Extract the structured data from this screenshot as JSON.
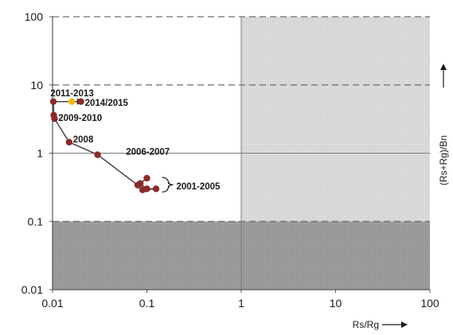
{
  "chart_data": {
    "type": "scatter",
    "x_scale": "log",
    "y_scale": "log",
    "xlim": [
      0.01,
      100
    ],
    "ylim": [
      0.01,
      100
    ],
    "xlabel": "Rs/Rg",
    "ylabel": "(Rs+Rg)/Bn",
    "x_ticks": [
      "0.01",
      "0.1",
      "1",
      "10",
      "100"
    ],
    "y_ticks": [
      "0.01",
      "0.1",
      "1",
      "10",
      "100"
    ],
    "reference_lines": {
      "x": [
        1
      ],
      "y": [
        1
      ],
      "y_dashed": [
        0.1,
        10,
        100
      ]
    },
    "shaded_regions": [
      {
        "x": [
          1,
          100
        ],
        "y": [
          0.1,
          100
        ],
        "color": "#d6d6d6"
      },
      {
        "x": [
          0.01,
          100
        ],
        "y": [
          0.01,
          0.1
        ],
        "color": "#9a9a9a"
      }
    ],
    "series": [
      {
        "color": "#8b2a2a",
        "points": [
          {
            "x": 0.1,
            "y": 0.43
          },
          {
            "x": 0.085,
            "y": 0.36
          },
          {
            "x": 0.1,
            "y": 0.3
          },
          {
            "x": 0.125,
            "y": 0.3
          },
          {
            "x": 0.09,
            "y": 0.29
          },
          {
            "x": 0.08,
            "y": 0.34
          },
          {
            "x": 0.03,
            "y": 0.95
          },
          {
            "x": 0.015,
            "y": 1.45
          },
          {
            "x": 0.0105,
            "y": 3.2
          },
          {
            "x": 0.0103,
            "y": 3.6
          },
          {
            "x": 0.0102,
            "y": 5.7
          },
          {
            "x": 0.02,
            "y": 5.7
          }
        ]
      },
      {
        "color": "#f5b800",
        "points": [
          {
            "x": 0.016,
            "y": 5.7
          }
        ]
      }
    ],
    "annotations": [
      {
        "text": "2011-2013",
        "x": 0.0095,
        "y": 7.6
      },
      {
        "text": "2014/2015",
        "x": 0.022,
        "y": 5.5
      },
      {
        "text": "2009-2010",
        "x": 0.0115,
        "y": 3.3
      },
      {
        "text": "2008",
        "x": 0.0165,
        "y": 1.6
      },
      {
        "text": "2006-2007",
        "x": 0.06,
        "y": 1.05
      },
      {
        "text": "2001-2005",
        "x": 0.205,
        "y": 0.33
      }
    ]
  }
}
